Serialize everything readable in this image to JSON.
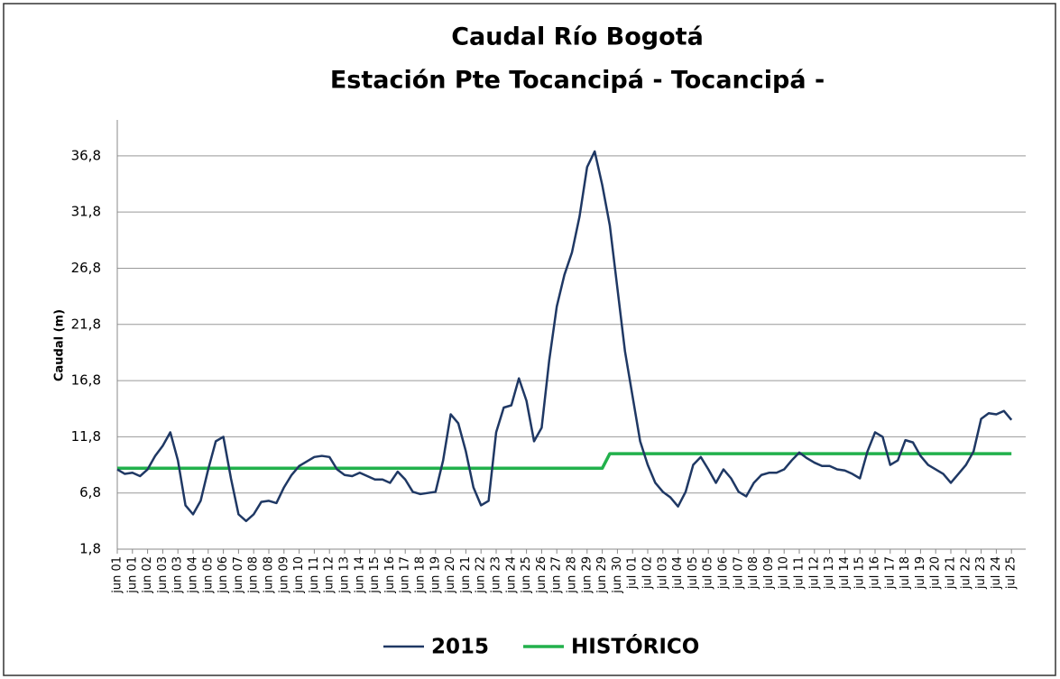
{
  "chart_data": {
    "type": "line",
    "title": "Caudal Río Bogotá",
    "subtitle": "Estación Pte Tocancipá - Tocancipá -",
    "y_label": "Caudal (m)",
    "categories": [
      "jun 01",
      null,
      "jun 01",
      null,
      "jun 02",
      null,
      "jun 03",
      null,
      "jun 03",
      null,
      "jun 04",
      null,
      "jun 05",
      null,
      "jun 06",
      null,
      "jun 07",
      null,
      "jun 08",
      null,
      "jun 08",
      null,
      "jun 09",
      null,
      "jun 10",
      null,
      "jun 11",
      null,
      "jun 12",
      null,
      "jun 13",
      null,
      "jun 14",
      null,
      "jun 15",
      null,
      "jun 16",
      null,
      "jun 17",
      null,
      "jun 18",
      null,
      "jun 19",
      null,
      "jun 20",
      null,
      "jun 21",
      null,
      "jun 22",
      null,
      "jun 23",
      null,
      "jun 24",
      null,
      "jun 25",
      null,
      "jun 26",
      null,
      "jun 27",
      null,
      "jun 28",
      null,
      "jun 29",
      null,
      "jun 29",
      null,
      "jun 30",
      null,
      "jul 01",
      null,
      "jul 02",
      null,
      "jul 03",
      null,
      "jul 04",
      null,
      "jul 05",
      null,
      "jul 05",
      null,
      "jul 06",
      null,
      "jul 07",
      null,
      "jul 08",
      null,
      "jul 09",
      null,
      "jul 10",
      null,
      "jul 11",
      null,
      "jul 12",
      null,
      "jul 13",
      null,
      "jul 14",
      null,
      "jul 15",
      null,
      "jul 16",
      null,
      "jul 17",
      null,
      "jul 18",
      null,
      "jul 19",
      null,
      "jul 20",
      null,
      "jul 21",
      null,
      "jul 22",
      null,
      "jul 23",
      null,
      "jul 24",
      null,
      "jul 25"
    ],
    "series": [
      {
        "name": "2015",
        "color": "#1f3864",
        "values": [
          8.9,
          8.5,
          8.6,
          8.3,
          8.9,
          10.1,
          11,
          12.2,
          9.7,
          5.7,
          4.9,
          6.1,
          8.9,
          11.4,
          11.8,
          8.1,
          4.9,
          4.3,
          4.9,
          6,
          6.1,
          5.9,
          7.3,
          8.4,
          9.2,
          9.6,
          10,
          10.1,
          10,
          8.9,
          8.4,
          8.3,
          8.6,
          8.3,
          8,
          8,
          7.7,
          8.7,
          8,
          6.9,
          6.7,
          6.8,
          6.9,
          9.7,
          13.8,
          13,
          10.5,
          7.3,
          5.7,
          6.1,
          12.2,
          14.4,
          14.6,
          17,
          15,
          11.4,
          12.6,
          18.6,
          23.4,
          26.2,
          28.2,
          31.4,
          35.8,
          37.2,
          34.2,
          30.6,
          25,
          19.4,
          15.4,
          11.4,
          9.3,
          7.7,
          6.9,
          6.4,
          5.6,
          6.9,
          9.3,
          10,
          8.9,
          7.7,
          8.9,
          8.1,
          6.9,
          6.5,
          7.7,
          8.4,
          8.6,
          8.6,
          8.9,
          9.7,
          10.4,
          9.9,
          9.5,
          9.2,
          9.2,
          8.9,
          8.8,
          8.5,
          8.1,
          10.5,
          12.2,
          11.8,
          9.3,
          9.7,
          11.5,
          11.3,
          10.1,
          9.3,
          8.9,
          8.5,
          7.7,
          8.5,
          9.3,
          10.5,
          13.4,
          13.9,
          13.8,
          14.1,
          13.3
        ]
      },
      {
        "name": "HISTÓRICO",
        "color": "#22b14c",
        "values": [
          9,
          9,
          9,
          9,
          9,
          9,
          9,
          9,
          9,
          9,
          9,
          9,
          9,
          9,
          9,
          9,
          9,
          9,
          9,
          9,
          9,
          9,
          9,
          9,
          9,
          9,
          9,
          9,
          9,
          9,
          9,
          9,
          9,
          9,
          9,
          9,
          9,
          9,
          9,
          9,
          9,
          9,
          9,
          9,
          9,
          9,
          9,
          9,
          9,
          9,
          9,
          9,
          9,
          9,
          9,
          9,
          9,
          9,
          9,
          9,
          9,
          9,
          9,
          9,
          9,
          10.3,
          10.3,
          10.3,
          10.3,
          10.3,
          10.3,
          10.3,
          10.3,
          10.3,
          10.3,
          10.3,
          10.3,
          10.3,
          10.3,
          10.3,
          10.3,
          10.3,
          10.3,
          10.3,
          10.3,
          10.3,
          10.3,
          10.3,
          10.3,
          10.3,
          10.3,
          10.3,
          10.3,
          10.3,
          10.3,
          10.3,
          10.3,
          10.3,
          10.3,
          10.3,
          10.3,
          10.3,
          10.3,
          10.3,
          10.3,
          10.3,
          10.3,
          10.3,
          10.3,
          10.3,
          10.3,
          10.3,
          10.3,
          10.3,
          10.3,
          10.3,
          10.3,
          10.3,
          10.3
        ]
      }
    ],
    "ylim": [
      1.8,
      40
    ],
    "yticks": [
      {
        "value": 1.8,
        "label": "1,8"
      },
      {
        "value": 6.8,
        "label": "6,8"
      },
      {
        "value": 11.8,
        "label": "11,8"
      },
      {
        "value": 16.8,
        "label": "16,8"
      },
      {
        "value": 21.8,
        "label": "21,8"
      },
      {
        "value": 26.8,
        "label": "26,8"
      },
      {
        "value": 31.8,
        "label": "31,8"
      },
      {
        "value": 36.8,
        "label": "36,8"
      }
    ],
    "grid": true,
    "legend": "bottom"
  }
}
